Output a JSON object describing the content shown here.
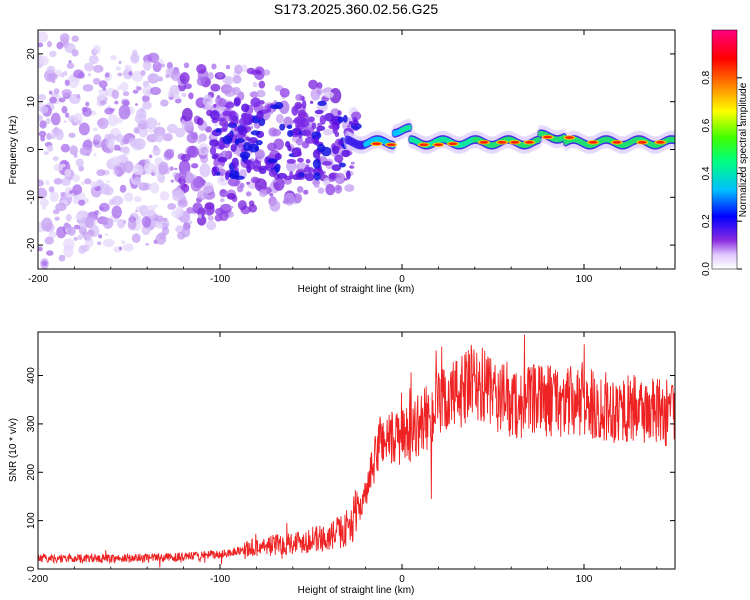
{
  "title": "S173.2025.360.02.56.G25",
  "chart_data": [
    {
      "type": "heatmap",
      "name": "spectrogram",
      "xlabel": "Height of straight line (km)",
      "ylabel": "Frequency (Hz)",
      "xlim": [
        -200,
        150
      ],
      "ylim": [
        -25,
        25
      ],
      "xticks": [
        -200,
        -100,
        0,
        100
      ],
      "yticks": [
        -20,
        -10,
        0,
        10,
        20
      ],
      "colorbar": {
        "label": "Normalized spectral amplitude",
        "range": [
          0,
          1
        ],
        "ticks": [
          "0.0",
          "0.2",
          "0.4",
          "0.6",
          "0.8"
        ],
        "colors": [
          "#ffffff",
          "#d8c8f8",
          "#8a2be2",
          "#0000ff",
          "#00c0ff",
          "#00ff80",
          "#80ff00",
          "#ffff00",
          "#ff8000",
          "#ff0000",
          "#ff0080"
        ]
      },
      "ridge": {
        "description_free": true,
        "x_start": -30,
        "x_end": 150,
        "freq_hz": 1.5
      }
    },
    {
      "type": "line",
      "name": "snr",
      "xlabel": "Height of straight line (km)",
      "ylabel": "SNR (10 * v/v)",
      "xlim": [
        -200,
        150
      ],
      "ylim": [
        0,
        490
      ],
      "xticks": [
        -200,
        -100,
        0,
        100
      ],
      "yticks": [
        0,
        100,
        200,
        300,
        400
      ],
      "color": "#ee2222",
      "trend": [
        {
          "x": -200,
          "y": 22
        },
        {
          "x": -150,
          "y": 22
        },
        {
          "x": -120,
          "y": 25
        },
        {
          "x": -100,
          "y": 30
        },
        {
          "x": -80,
          "y": 45
        },
        {
          "x": -60,
          "y": 55
        },
        {
          "x": -40,
          "y": 65
        },
        {
          "x": -30,
          "y": 85
        },
        {
          "x": -20,
          "y": 150
        },
        {
          "x": -12,
          "y": 270
        },
        {
          "x": 0,
          "y": 270
        },
        {
          "x": 10,
          "y": 300
        },
        {
          "x": 25,
          "y": 350
        },
        {
          "x": 40,
          "y": 385
        },
        {
          "x": 60,
          "y": 340
        },
        {
          "x": 80,
          "y": 350
        },
        {
          "x": 100,
          "y": 340
        },
        {
          "x": 125,
          "y": 330
        },
        {
          "x": 150,
          "y": 320
        }
      ]
    }
  ]
}
